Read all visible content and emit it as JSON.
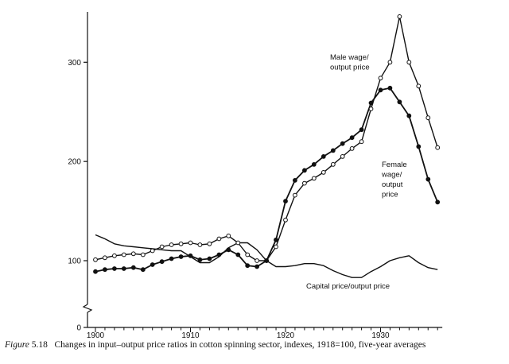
{
  "caption": {
    "figure_word": "Figure",
    "figure_number": "5.18",
    "text": "Changes in input–output price ratios in cotton spinning sector, indexes, 1918=100, five-year averages"
  },
  "chart_data": {
    "type": "line",
    "x_ticks": [
      1900,
      1910,
      1920,
      1930
    ],
    "y_ticks": [
      0,
      100,
      200,
      300
    ],
    "xlim": [
      1899,
      1937
    ],
    "ylim": [
      0,
      350
    ],
    "y_axis_break": true,
    "grid": false,
    "legend": "none (direct labels)",
    "series": [
      {
        "name": "Male wage/ output price",
        "label_lines": [
          "Male wage/",
          "output price"
        ],
        "marker": "open-circle",
        "points": [
          [
            1900,
            101
          ],
          [
            1901,
            103
          ],
          [
            1902,
            105
          ],
          [
            1903,
            106
          ],
          [
            1904,
            107
          ],
          [
            1905,
            106
          ],
          [
            1906,
            110
          ],
          [
            1907,
            114
          ],
          [
            1908,
            116
          ],
          [
            1909,
            117
          ],
          [
            1910,
            118
          ],
          [
            1911,
            116
          ],
          [
            1912,
            117
          ],
          [
            1913,
            122
          ],
          [
            1914,
            125
          ],
          [
            1915,
            118
          ],
          [
            1916,
            106
          ],
          [
            1917,
            100
          ],
          [
            1918,
            100
          ],
          [
            1919,
            114
          ],
          [
            1920,
            141
          ],
          [
            1921,
            166
          ],
          [
            1922,
            178
          ],
          [
            1923,
            183
          ],
          [
            1924,
            189
          ],
          [
            1925,
            197
          ],
          [
            1926,
            205
          ],
          [
            1927,
            213
          ],
          [
            1928,
            220
          ],
          [
            1929,
            253
          ],
          [
            1930,
            284
          ],
          [
            1931,
            300
          ],
          [
            1932,
            346
          ],
          [
            1933,
            300
          ],
          [
            1934,
            276
          ],
          [
            1935,
            244
          ],
          [
            1936,
            214
          ]
        ]
      },
      {
        "name": "Female wage/ output price",
        "label_lines": [
          "Female",
          "wage/",
          "output",
          "price"
        ],
        "marker": "filled-circle",
        "points": [
          [
            1900,
            89
          ],
          [
            1901,
            91
          ],
          [
            1902,
            92
          ],
          [
            1903,
            92
          ],
          [
            1904,
            93
          ],
          [
            1905,
            91
          ],
          [
            1906,
            96
          ],
          [
            1907,
            99
          ],
          [
            1908,
            102
          ],
          [
            1909,
            104
          ],
          [
            1910,
            105
          ],
          [
            1911,
            101
          ],
          [
            1912,
            102
          ],
          [
            1913,
            106
          ],
          [
            1914,
            111
          ],
          [
            1915,
            106
          ],
          [
            1916,
            95
          ],
          [
            1917,
            94
          ],
          [
            1918,
            100
          ],
          [
            1919,
            121
          ],
          [
            1920,
            160
          ],
          [
            1921,
            181
          ],
          [
            1922,
            191
          ],
          [
            1923,
            197
          ],
          [
            1924,
            205
          ],
          [
            1925,
            211
          ],
          [
            1926,
            218
          ],
          [
            1927,
            224
          ],
          [
            1928,
            232
          ],
          [
            1929,
            259
          ],
          [
            1930,
            272
          ],
          [
            1931,
            274
          ],
          [
            1932,
            260
          ],
          [
            1933,
            246
          ],
          [
            1934,
            215
          ],
          [
            1935,
            182
          ],
          [
            1936,
            159
          ]
        ]
      },
      {
        "name": "Capital price/output price",
        "label_lines": [
          "Capital price/output price"
        ],
        "marker": "none",
        "points": [
          [
            1900,
            126
          ],
          [
            1901,
            122
          ],
          [
            1902,
            117
          ],
          [
            1903,
            115
          ],
          [
            1904,
            114
          ],
          [
            1905,
            113
          ],
          [
            1906,
            112
          ],
          [
            1907,
            111
          ],
          [
            1908,
            110
          ],
          [
            1909,
            110
          ],
          [
            1910,
            104
          ],
          [
            1911,
            98
          ],
          [
            1912,
            98
          ],
          [
            1913,
            104
          ],
          [
            1914,
            113
          ],
          [
            1915,
            118
          ],
          [
            1916,
            118
          ],
          [
            1917,
            111
          ],
          [
            1918,
            100
          ],
          [
            1919,
            94
          ],
          [
            1920,
            94
          ],
          [
            1921,
            95
          ],
          [
            1922,
            97
          ],
          [
            1923,
            97
          ],
          [
            1924,
            95
          ],
          [
            1925,
            90
          ],
          [
            1926,
            86
          ],
          [
            1927,
            83
          ],
          [
            1928,
            83
          ],
          [
            1929,
            89
          ],
          [
            1930,
            94
          ],
          [
            1931,
            100
          ],
          [
            1932,
            103
          ],
          [
            1933,
            105
          ],
          [
            1934,
            98
          ],
          [
            1935,
            93
          ],
          [
            1936,
            91
          ]
        ]
      }
    ]
  }
}
